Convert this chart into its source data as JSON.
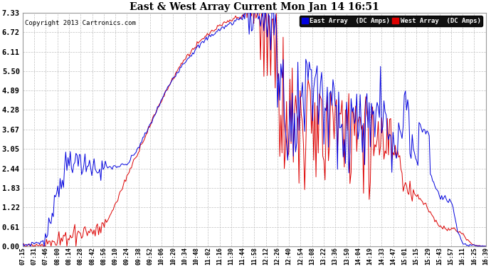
{
  "title": "East & West Array Current Mon Jan 14 16:51",
  "copyright": "Copyright 2013 Cartronics.com",
  "bg_color": "#ffffff",
  "grid_color": "#c0c0c0",
  "east_color": "#0000dd",
  "west_color": "#dd0000",
  "east_label": "East Array  (DC Amps)",
  "west_label": "West Array  (DC Amps)",
  "yticks": [
    0.0,
    0.61,
    1.22,
    1.83,
    2.44,
    3.05,
    3.67,
    4.28,
    4.89,
    5.5,
    6.11,
    6.72,
    7.33
  ],
  "ylim": [
    0.0,
    7.33
  ],
  "xtick_labels": [
    "07:15",
    "07:31",
    "07:46",
    "08:00",
    "08:14",
    "08:28",
    "08:42",
    "08:56",
    "09:10",
    "09:24",
    "09:38",
    "09:52",
    "10:06",
    "10:20",
    "10:34",
    "10:48",
    "11:02",
    "11:16",
    "11:30",
    "11:44",
    "11:58",
    "12:12",
    "12:26",
    "12:40",
    "12:54",
    "13:08",
    "13:22",
    "13:36",
    "13:50",
    "14:04",
    "14:19",
    "14:33",
    "14:47",
    "15:01",
    "15:15",
    "15:29",
    "15:43",
    "15:57",
    "16:11",
    "16:25",
    "16:39"
  ],
  "east_y": [
    0.02,
    0.1,
    0.15,
    1.9,
    2.55,
    2.6,
    2.5,
    2.45,
    2.5,
    2.55,
    3.1,
    3.8,
    4.6,
    5.3,
    5.8,
    6.2,
    6.55,
    6.8,
    7.0,
    7.2,
    7.28,
    7.3,
    7.2,
    4.9,
    6.3,
    5.4,
    4.85,
    4.6,
    4.35,
    4.1,
    4.6,
    4.3,
    3.0,
    4.5,
    2.6,
    2.4,
    1.6,
    1.4,
    0.1,
    0.05,
    0.03
  ],
  "west_y": [
    0.02,
    0.05,
    0.08,
    0.1,
    0.35,
    0.45,
    0.46,
    0.6,
    1.3,
    2.2,
    3.0,
    3.8,
    4.6,
    5.3,
    5.9,
    6.3,
    6.65,
    6.9,
    7.1,
    7.25,
    7.33,
    7.28,
    7.1,
    5.9,
    5.3,
    4.8,
    4.6,
    4.4,
    4.2,
    4.0,
    3.9,
    3.7,
    3.4,
    2.0,
    1.6,
    1.2,
    0.6,
    0.55,
    0.55,
    0.1,
    0.04
  ]
}
